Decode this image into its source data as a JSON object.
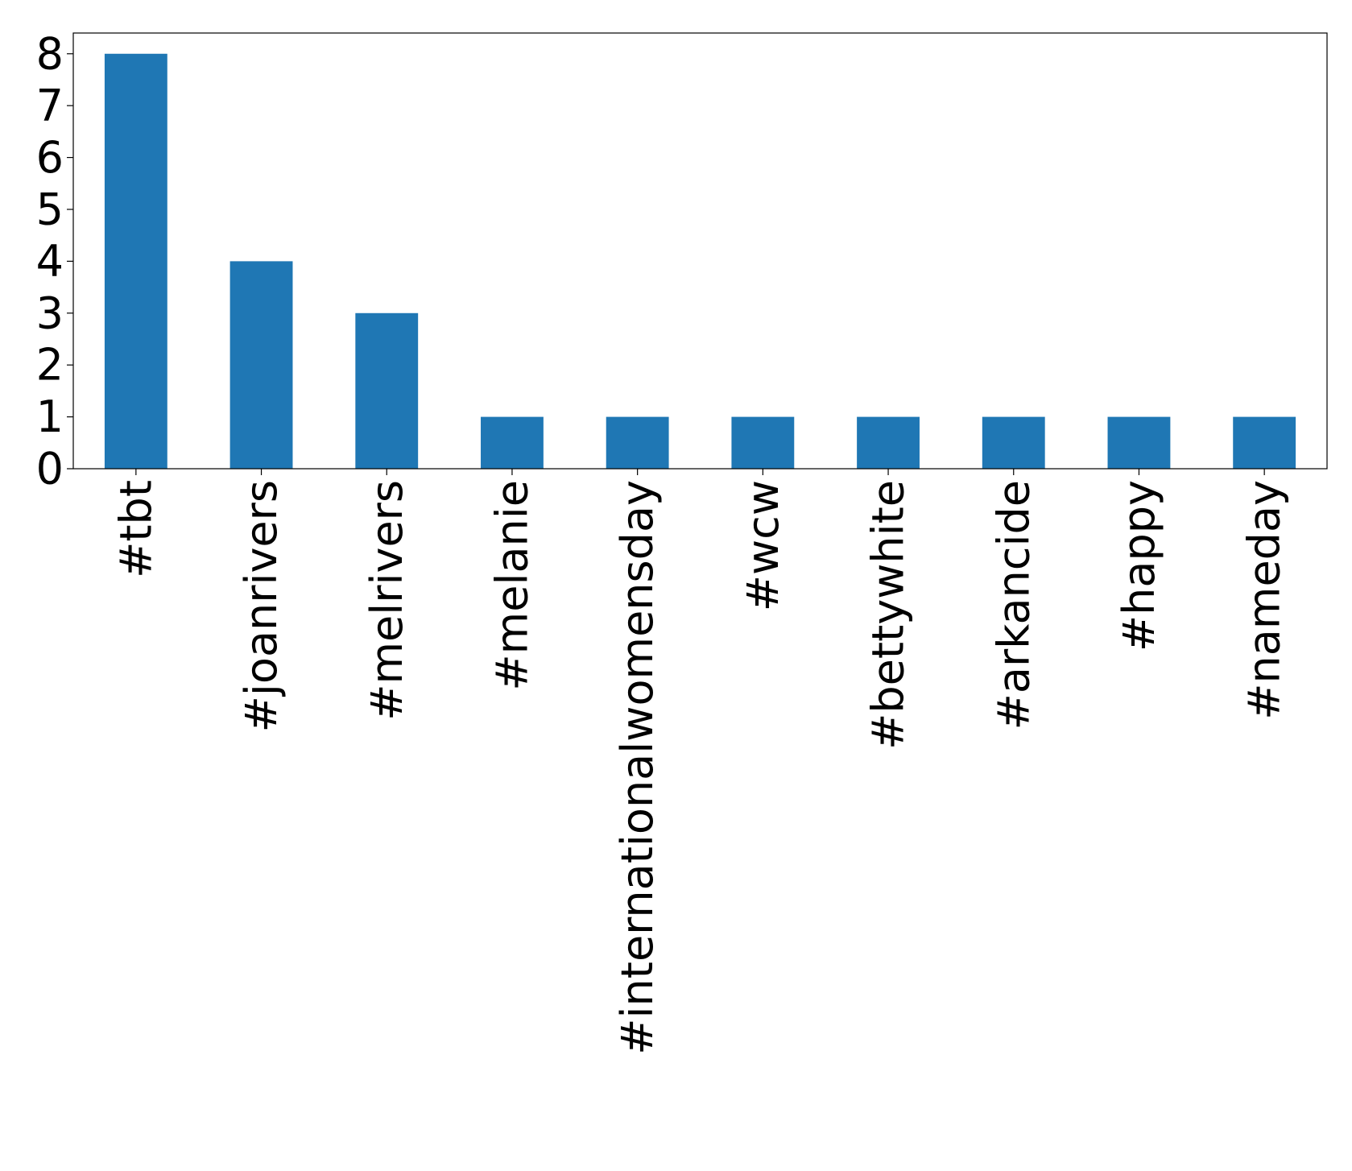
{
  "chart_data": {
    "type": "bar",
    "categories": [
      "#tbt",
      "#joanrivers",
      "#melrivers",
      "#melanie",
      "#internationalwomensday",
      "#wcw",
      "#bettywhite",
      "#arkancide",
      "#happy",
      "#nameday"
    ],
    "values": [
      8,
      4,
      3,
      1,
      1,
      1,
      1,
      1,
      1,
      1
    ],
    "color": "#1f77b4",
    "ylim": [
      0,
      8.4
    ],
    "yticks": [
      0,
      1,
      2,
      3,
      4,
      5,
      6,
      7,
      8
    ],
    "grid": false
  }
}
